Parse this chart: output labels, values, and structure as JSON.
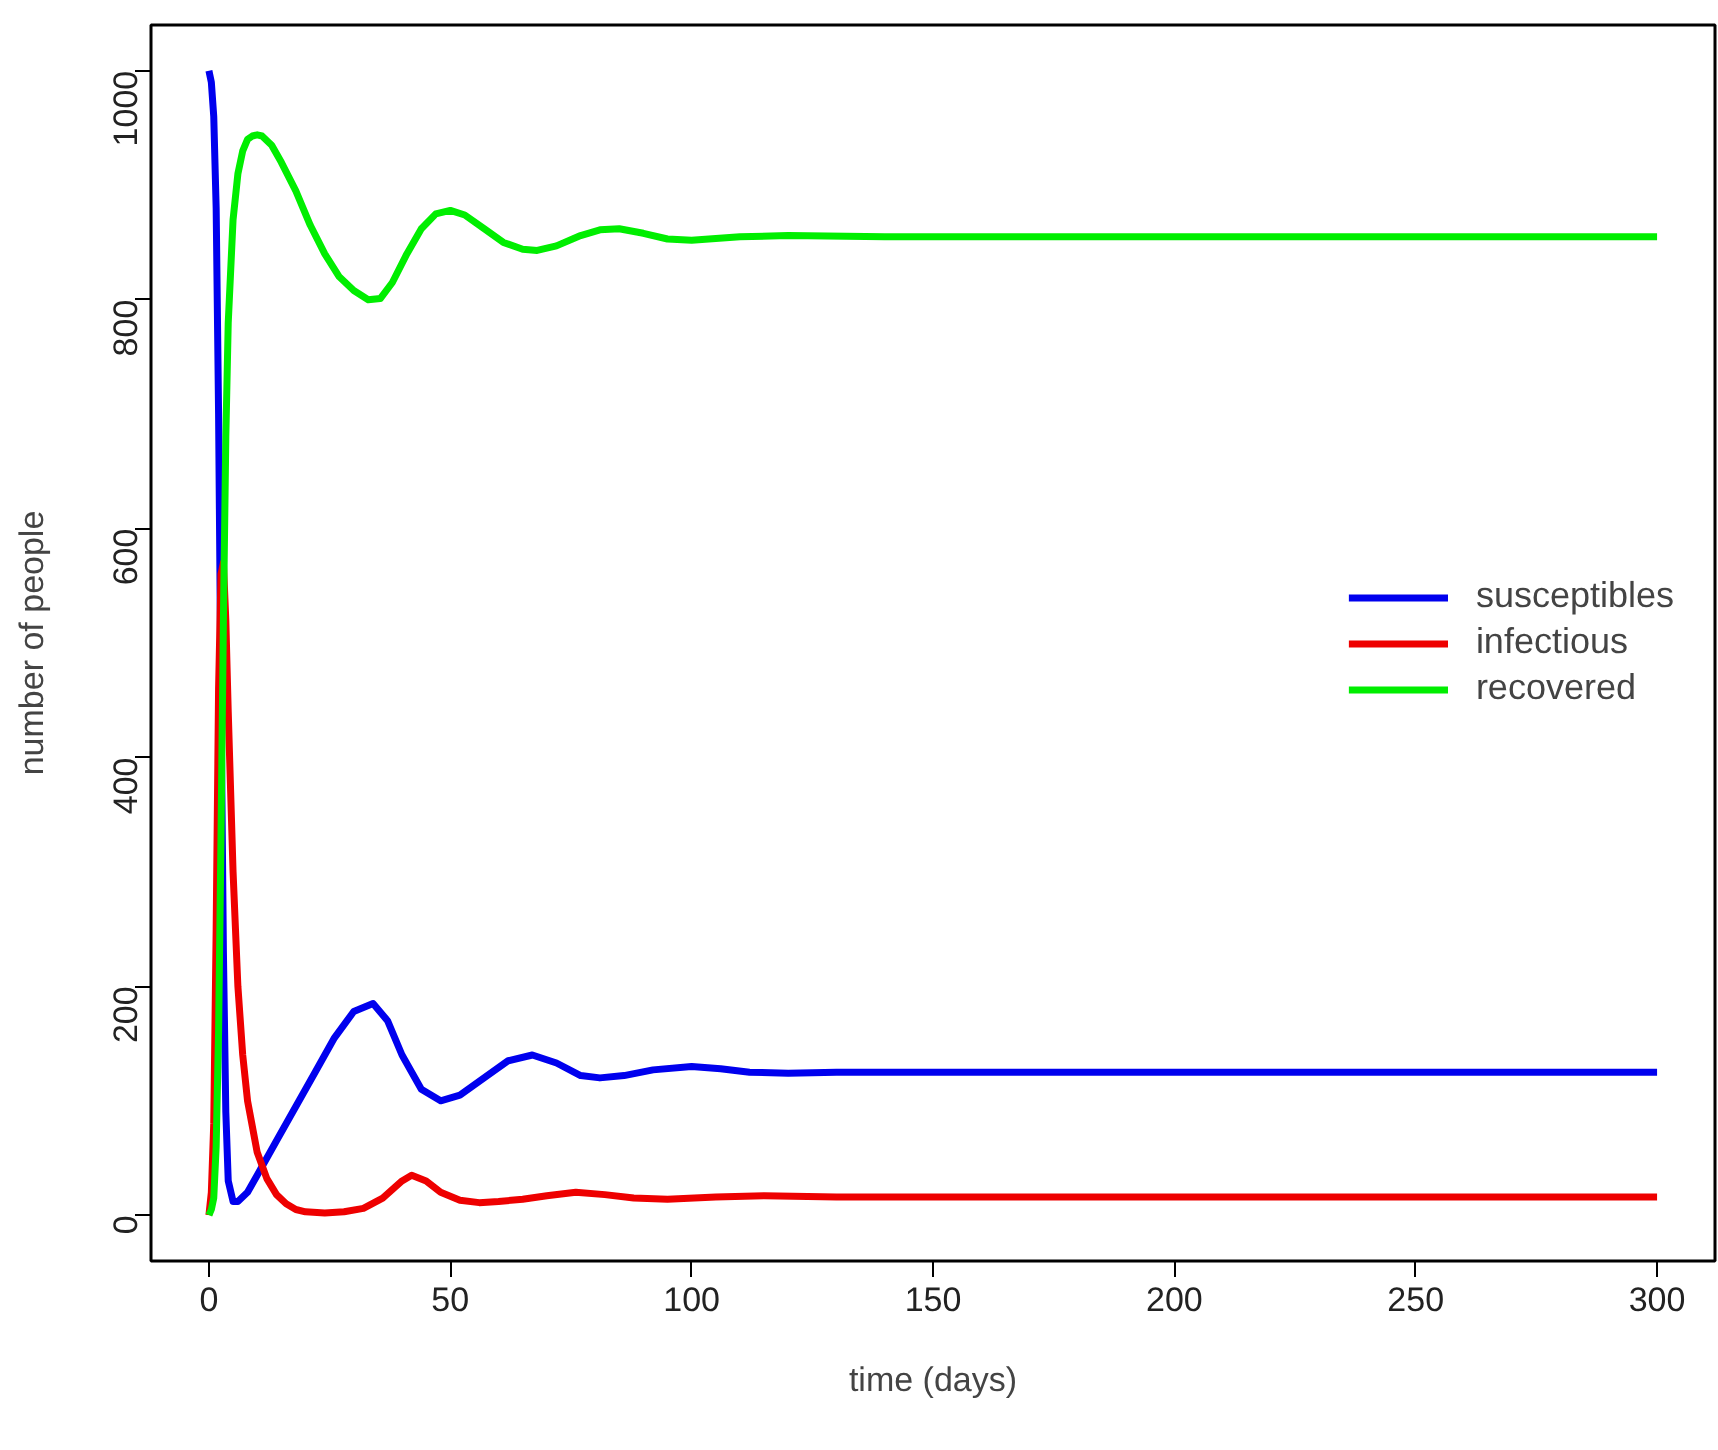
{
  "chart_data": {
    "type": "line",
    "xlabel": "time (days)",
    "ylabel": "number of people",
    "xlim": [
      -12,
      312
    ],
    "ylim": [
      -40,
      1040
    ],
    "xticks": [
      0,
      50,
      100,
      150,
      200,
      250,
      300
    ],
    "yticks": [
      0,
      200,
      400,
      600,
      800,
      1000
    ],
    "grid": false,
    "legend": "right",
    "line_style": "solid",
    "marker": "none",
    "series": [
      {
        "name": "susceptibles",
        "color": "#0000ee",
        "x": [
          0,
          0.5,
          1,
          1.5,
          2,
          2.5,
          3,
          3.5,
          4,
          5,
          6,
          8,
          10,
          14,
          18,
          22,
          26,
          30,
          34,
          37,
          40,
          44,
          48,
          52,
          57,
          62,
          67,
          72,
          77,
          81,
          86,
          92,
          100,
          106,
          112,
          120,
          130,
          150,
          200,
          250,
          300
        ],
        "values": [
          1000,
          990,
          960,
          880,
          700,
          450,
          230,
          90,
          30,
          12,
          12,
          20,
          35,
          65,
          95,
          125,
          155,
          178,
          185,
          170,
          140,
          110,
          100,
          105,
          120,
          135,
          140,
          133,
          122,
          120,
          122,
          127,
          130,
          128,
          125,
          124,
          125,
          125,
          125,
          125,
          125
        ]
      },
      {
        "name": "infectious",
        "color": "#ee0000",
        "x": [
          0,
          0.5,
          1,
          1.5,
          2,
          2.5,
          3,
          3.5,
          4,
          5,
          6,
          7,
          8,
          10,
          12,
          14,
          16,
          18,
          20,
          24,
          28,
          32,
          36,
          40,
          42,
          45,
          48,
          52,
          56,
          60,
          65,
          70,
          76,
          82,
          88,
          95,
          105,
          115,
          130,
          150,
          200,
          250,
          300
        ],
        "values": [
          0,
          20,
          80,
          250,
          460,
          560,
          570,
          520,
          440,
          300,
          200,
          140,
          100,
          55,
          32,
          18,
          10,
          5,
          3,
          2,
          3,
          6,
          15,
          30,
          35,
          30,
          20,
          13,
          11,
          12,
          14,
          17,
          20,
          18,
          15,
          14,
          16,
          17,
          16,
          16,
          16,
          16,
          16
        ]
      },
      {
        "name": "recovered",
        "color": "#00ee00",
        "x": [
          0,
          0.5,
          1,
          1.5,
          2,
          2.5,
          3,
          3.5,
          4,
          5,
          6,
          7,
          8,
          9,
          10,
          11,
          13,
          15,
          18,
          21,
          24,
          27,
          30,
          33,
          35.5,
          38,
          41,
          44,
          47,
          50,
          53,
          57,
          61,
          65,
          68,
          72,
          77,
          81,
          85,
          90,
          95,
          100,
          110,
          120,
          140,
          160,
          200,
          250,
          300
        ],
        "values": [
          0,
          5,
          15,
          60,
          160,
          330,
          520,
          680,
          780,
          870,
          910,
          930,
          940,
          943,
          944,
          943,
          935,
          920,
          895,
          865,
          840,
          820,
          808,
          800,
          801,
          815,
          840,
          862,
          875,
          878,
          874,
          862,
          850,
          844,
          843,
          847,
          856,
          861,
          862,
          858,
          853,
          852,
          855,
          856,
          855,
          855,
          855,
          855,
          855
        ]
      }
    ]
  }
}
